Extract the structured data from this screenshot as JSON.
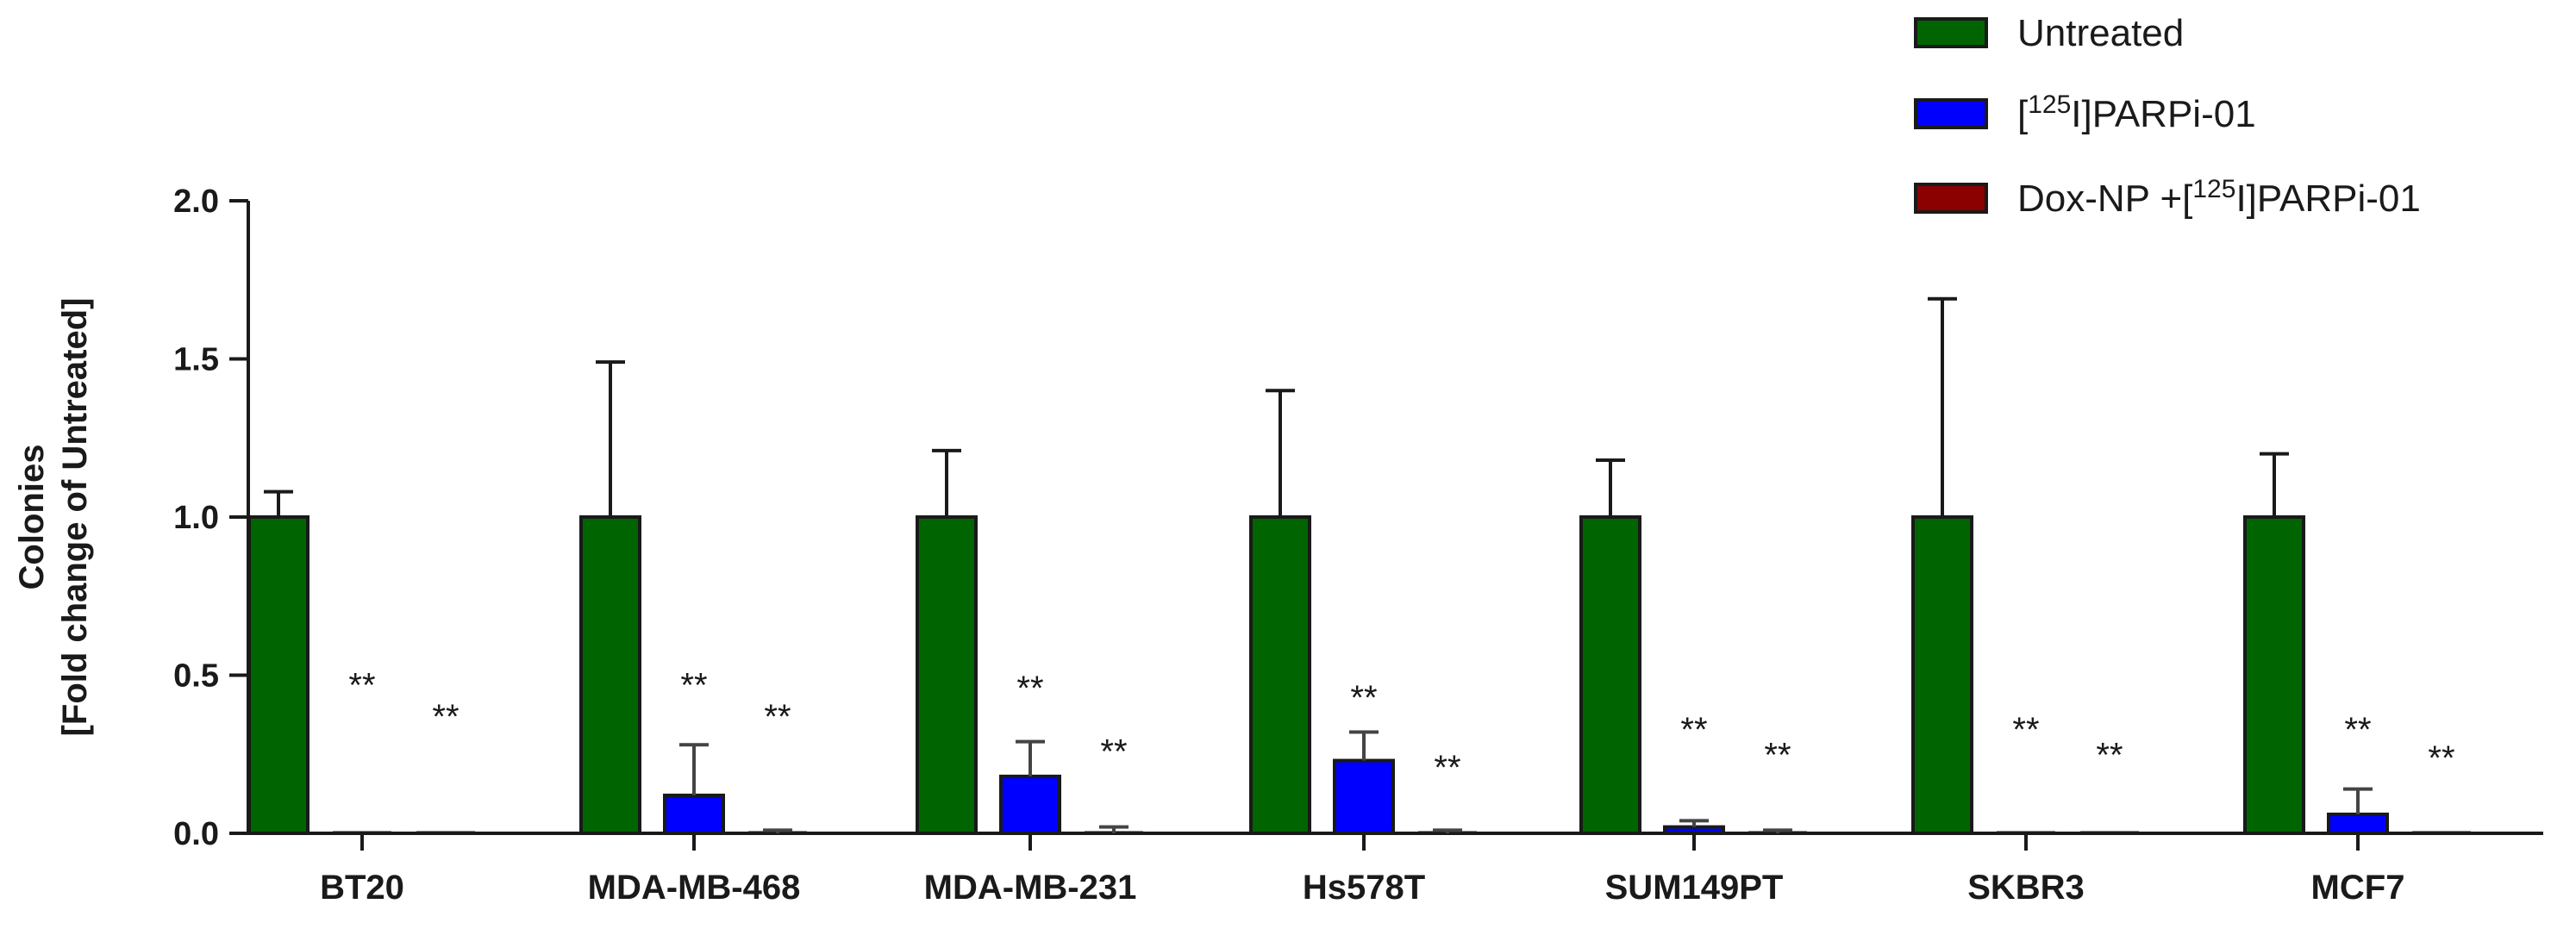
{
  "chart_data": {
    "type": "bar",
    "title": "",
    "xlabel": "",
    "ylabel_line1": "Colonies",
    "ylabel_line2": "[Fold change of Untreated]",
    "ylim": [
      0,
      2.0
    ],
    "yticks": [
      "0.0",
      "0.5",
      "1.0",
      "1.5",
      "2.0"
    ],
    "categories": [
      "BT20",
      "MDA-MB-468",
      "MDA-MB-231",
      "Hs578T",
      "SUM149PT",
      "SKBR3",
      "MCF7"
    ],
    "legend_position": "top-right",
    "series": [
      {
        "name": "Untreated",
        "legend_label": "Untreated",
        "color": "#006400",
        "values": [
          1.0,
          1.0,
          1.0,
          1.0,
          1.0,
          1.0,
          1.0
        ],
        "errors": [
          0.08,
          0.49,
          0.21,
          0.4,
          0.18,
          0.69,
          0.2
        ]
      },
      {
        "name": "[125I]PARPi-01",
        "legend_label": {
          "pre": "[",
          "sup": "125",
          "post": "I]PARPi-01"
        },
        "color": "#0000FF",
        "values": [
          0.0,
          0.12,
          0.18,
          0.23,
          0.02,
          0.0,
          0.06
        ],
        "errors": [
          0.0,
          0.16,
          0.11,
          0.09,
          0.02,
          0.0,
          0.08
        ],
        "significance": [
          "**",
          "**",
          "**",
          "**",
          "**",
          "**",
          "**"
        ],
        "sig_values": [
          0.47,
          0.47,
          0.46,
          0.43,
          0.33,
          0.33,
          0.33
        ]
      },
      {
        "name": "Dox-NP +[125I]PARPi-01",
        "legend_label": {
          "pre": "Dox-NP +[",
          "sup": "125",
          "post": "I]PARPi-01"
        },
        "color": "#8B0000",
        "values": [
          0.0,
          0.0,
          0.0,
          0.0,
          0.0,
          0.0,
          0.0
        ],
        "errors": [
          0.0,
          0.01,
          0.02,
          0.01,
          0.01,
          0.0,
          0.0
        ],
        "significance": [
          "**",
          "**",
          "**",
          "**",
          "**",
          "**",
          "**"
        ],
        "sig_values": [
          0.37,
          0.37,
          0.26,
          0.21,
          0.25,
          0.25,
          0.24
        ]
      }
    ]
  }
}
